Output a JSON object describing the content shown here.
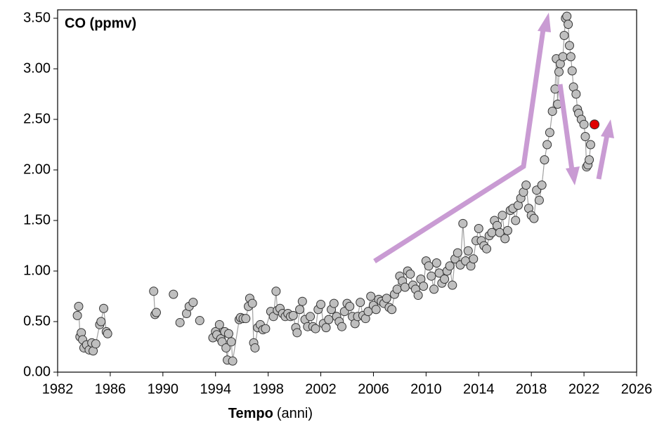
{
  "chart_data": {
    "type": "line",
    "markers": true,
    "title": "CO (ppmv)",
    "xlabel": "Tempo",
    "xlabel_unit": "(anni)",
    "color": "#bfbfbf",
    "line_color": "#a0a0a0",
    "xlim": [
      1982,
      2026
    ],
    "xticks": [
      1982,
      1986,
      1990,
      1994,
      1998,
      2002,
      2006,
      2010,
      2014,
      2018,
      2022,
      2026
    ],
    "ylim": [
      0,
      3.5
    ],
    "yticks": [
      {
        "value": 0,
        "label": "0.00"
      },
      {
        "value": 0.5,
        "label": "0.50"
      },
      {
        "value": 1,
        "label": "1.00"
      },
      {
        "value": 1.5,
        "label": "1.50"
      },
      {
        "value": 2,
        "label": "2.00"
      },
      {
        "value": 2.5,
        "label": "2.50"
      },
      {
        "value": 3,
        "label": "3.00"
      },
      {
        "value": 3.5,
        "label": "3.50"
      }
    ],
    "x": [
      1983.5,
      1983.6,
      1983.7,
      1983.8,
      1983.9,
      1984.0,
      1984.2,
      1984.4,
      1984.6,
      1984.7,
      1984.9,
      1985.2,
      1985.3,
      1985.5,
      1985.7,
      1985.8,
      null,
      1989.3,
      1989.4,
      1989.5,
      null,
      1990.8,
      null,
      1991.3,
      1991.8,
      1992.0,
      1992.3,
      null,
      1992.8,
      null,
      1993.8,
      1994.0,
      1994.1,
      1994.3,
      1994.4,
      1994.5,
      1994.7,
      1994.8,
      1994.9,
      1995.0,
      1995.2,
      1995.3,
      1995.8,
      1995.9,
      1996.1,
      1996.3,
      1996.5,
      1996.6,
      1996.8,
      1996.9,
      1997.0,
      1997.2,
      1997.4,
      1997.6,
      1997.8,
      1998.2,
      1998.4,
      1998.6,
      1998.7,
      1998.9,
      1999.1,
      1999.3,
      1999.5,
      1999.7,
      1999.9,
      2000.1,
      2000.2,
      2000.4,
      2000.6,
      2000.8,
      2001.0,
      2001.2,
      2001.4,
      2001.6,
      2001.8,
      2002.0,
      2002.2,
      2002.4,
      2002.6,
      2002.8,
      2003.0,
      2003.2,
      2003.4,
      2003.6,
      2003.8,
      2004.0,
      2004.2,
      2004.4,
      2004.6,
      2004.8,
      2005.0,
      2005.2,
      2005.4,
      2005.6,
      2005.8,
      2006.0,
      2006.2,
      2006.4,
      2006.6,
      2006.8,
      2007.0,
      2007.2,
      2007.4,
      2007.6,
      2007.8,
      2008.0,
      2008.2,
      2008.4,
      2008.6,
      2008.8,
      2009.0,
      2009.2,
      2009.4,
      2009.6,
      2009.8,
      2010.0,
      2010.2,
      2010.4,
      2010.6,
      2010.8,
      2011.0,
      2011.2,
      2011.4,
      2011.6,
      2011.8,
      2012.0,
      2012.2,
      2012.4,
      2012.6,
      2012.8,
      2013.0,
      2013.2,
      2013.4,
      2013.6,
      2013.8,
      2014.0,
      2014.2,
      2014.4,
      2014.6,
      2014.8,
      2015.0,
      2015.2,
      2015.4,
      2015.6,
      2015.8,
      2016.0,
      2016.2,
      2016.4,
      2016.6,
      2016.8,
      2017.0,
      2017.2,
      2017.4,
      2017.6,
      2017.8,
      2018.0,
      2018.2,
      2018.4,
      2018.6,
      2018.8,
      2019.0,
      2019.2,
      2019.4,
      2019.6,
      2019.8,
      2019.9,
      2020.0,
      2020.1,
      2020.2,
      2020.4,
      2020.5,
      2020.6,
      2020.7,
      2020.8,
      2020.9,
      2021.0,
      2021.1,
      2021.2,
      2021.4,
      2021.5,
      2021.6,
      2021.8,
      2022.0,
      2022.1,
      2022.2,
      2022.3,
      2022.4,
      2022.5
    ],
    "values": [
      0.56,
      0.65,
      0.35,
      0.39,
      0.32,
      0.24,
      0.27,
      0.22,
      0.29,
      0.21,
      0.28,
      0.47,
      0.5,
      0.63,
      0.4,
      0.38,
      null,
      0.8,
      0.57,
      0.59,
      null,
      0.77,
      null,
      0.49,
      0.58,
      0.65,
      0.69,
      null,
      0.51,
      null,
      0.34,
      0.4,
      0.37,
      0.47,
      0.33,
      0.3,
      0.4,
      0.24,
      0.12,
      0.38,
      0.3,
      0.11,
      0.52,
      0.54,
      0.53,
      0.53,
      0.65,
      0.73,
      0.68,
      0.29,
      0.24,
      0.44,
      0.47,
      0.42,
      0.43,
      0.6,
      0.55,
      0.8,
      0.61,
      0.63,
      0.58,
      0.55,
      0.58,
      0.55,
      0.56,
      0.44,
      0.39,
      0.62,
      0.7,
      0.52,
      0.45,
      0.55,
      0.45,
      0.43,
      0.62,
      0.67,
      0.48,
      0.44,
      0.52,
      0.62,
      0.68,
      0.55,
      0.5,
      0.45,
      0.6,
      0.68,
      0.65,
      0.55,
      0.48,
      0.55,
      0.69,
      0.56,
      0.53,
      0.6,
      0.75,
      0.66,
      0.62,
      0.72,
      0.7,
      0.68,
      0.73,
      0.64,
      0.62,
      0.77,
      0.82,
      0.95,
      0.9,
      0.84,
      1.0,
      0.97,
      0.86,
      0.82,
      0.76,
      0.92,
      0.85,
      1.1,
      1.05,
      0.95,
      0.82,
      1.08,
      0.98,
      0.88,
      0.92,
      1.0,
      1.05,
      0.86,
      1.12,
      1.18,
      1.06,
      1.47,
      1.1,
      1.2,
      1.05,
      1.12,
      1.3,
      1.42,
      1.3,
      1.25,
      1.22,
      1.35,
      1.38,
      1.5,
      1.45,
      1.38,
      1.55,
      1.32,
      1.4,
      1.6,
      1.62,
      1.5,
      1.65,
      1.72,
      1.78,
      1.85,
      1.62,
      1.55,
      1.52,
      1.8,
      1.7,
      1.85,
      2.1,
      2.25,
      2.37,
      2.58,
      2.8,
      3.1,
      2.65,
      2.97,
      3.05,
      3.12,
      3.33,
      3.5,
      3.52,
      3.44,
      3.23,
      3.12,
      2.98,
      2.82,
      2.75,
      2.6,
      2.56,
      2.5,
      2.45,
      2.33,
      2.03,
      2.05,
      2.1,
      2.25
    ],
    "highlight": {
      "x": 2022.8,
      "y": 2.45,
      "color": "#e00000"
    }
  }
}
